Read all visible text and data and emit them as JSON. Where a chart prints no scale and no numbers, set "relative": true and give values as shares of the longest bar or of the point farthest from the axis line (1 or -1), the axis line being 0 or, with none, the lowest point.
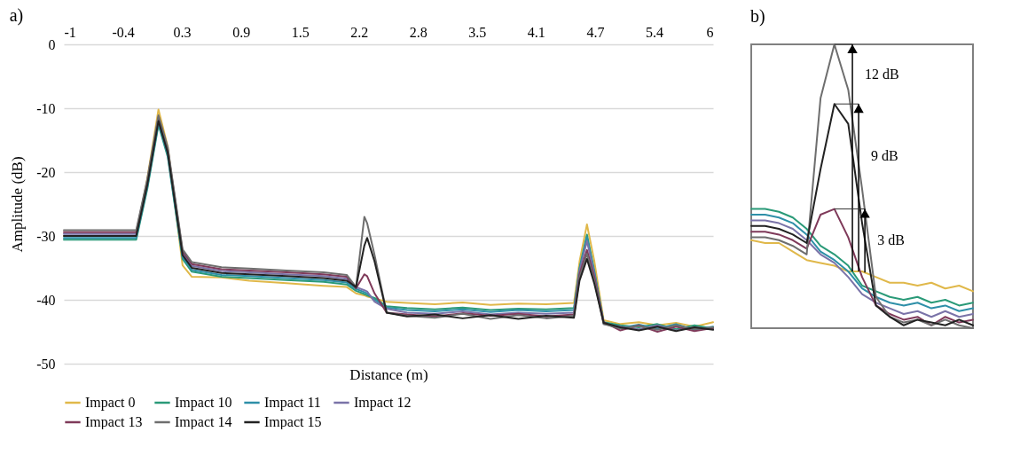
{
  "chart_data": [
    {
      "type": "line",
      "title": "a)",
      "xlabel": "Distance (m)",
      "ylabel": "Amplitude (dB)",
      "xlim": [
        -1,
        6
      ],
      "ylim": [
        -50,
        0
      ],
      "xticks": [
        -1,
        {
          "value": -0.3636,
          "label": "-0.4"
        },
        {
          "value": 0.2727,
          "label": "0.3"
        },
        {
          "value": 0.9091,
          "label": "0.9"
        },
        {
          "value": 1.5455,
          "label": "1.5"
        },
        {
          "value": 2.1818,
          "label": "2.2"
        },
        {
          "value": 2.8182,
          "label": "2.8"
        },
        {
          "value": 3.4545,
          "label": "3.5"
        },
        {
          "value": 4.0909,
          "label": "4.1"
        },
        {
          "value": 4.7273,
          "label": "4.7"
        },
        {
          "value": 5.3636,
          "label": "5.4"
        },
        6
      ],
      "yticks": [
        0,
        -10,
        -20,
        -30,
        -40,
        -50
      ],
      "grid": "y",
      "legend": "bottom",
      "line_style": "solid",
      "x": [
        -1,
        -0.22,
        -0.1,
        0.02,
        0.12,
        0.28,
        0.38,
        0.7,
        1.0,
        1.4,
        1.8,
        2.05,
        2.15,
        2.24,
        2.27,
        2.35,
        2.48,
        2.7,
        3.0,
        3.3,
        3.6,
        3.9,
        4.2,
        4.5,
        4.56,
        4.64,
        4.72,
        4.82,
        5.0,
        5.2,
        5.4,
        5.6,
        5.8,
        6.0
      ],
      "series": [
        {
          "name": "Impact 0",
          "color": "#e0b84a",
          "values": [
            -30,
            -30,
            -21,
            -10.2,
            -16,
            -34.6,
            -36.4,
            -36.5,
            -37,
            -37.4,
            -37.8,
            -38,
            -39,
            -39.3,
            -39.5,
            -39.8,
            -40.3,
            -40.5,
            -40.7,
            -40.4,
            -40.8,
            -40.6,
            -40.7,
            -40.5,
            -34,
            -28.2,
            -34,
            -43.2,
            -43.8,
            -43.5,
            -44,
            -43.6,
            -44.2,
            -43.5
          ]
        },
        {
          "name": "Impact 10",
          "color": "#2a9a78",
          "values": [
            -30.6,
            -30.6,
            -22.6,
            -12.6,
            -17.6,
            -33.6,
            -35.6,
            -36.4,
            -36.6,
            -36.9,
            -37.2,
            -37.6,
            -38.6,
            -39.1,
            -39.3,
            -39.7,
            -41,
            -41.3,
            -41.5,
            -41.2,
            -41.6,
            -41.4,
            -41.5,
            -41.3,
            -35,
            -29.8,
            -35.5,
            -43.5,
            -44,
            -44.3,
            -43.8,
            -44.6,
            -44,
            -44.5
          ]
        },
        {
          "name": "Impact 11",
          "color": "#2e8fa8",
          "values": [
            -30.3,
            -30.3,
            -22.3,
            -12.3,
            -17.3,
            -33.3,
            -35.3,
            -36.1,
            -36.3,
            -36.6,
            -36.9,
            -37.3,
            -38.3,
            -38.8,
            -39,
            -40,
            -41.2,
            -41.6,
            -41.8,
            -41.5,
            -41.9,
            -41.6,
            -41.8,
            -41.6,
            -35.2,
            -30.2,
            -35.8,
            -43.6,
            -44.4,
            -43.9,
            -44.5,
            -43.8,
            -44.7,
            -44.2
          ]
        },
        {
          "name": "Impact 12",
          "color": "#7a73a8",
          "values": [
            -29.7,
            -29.7,
            -21.7,
            -11.7,
            -16.7,
            -32.7,
            -34.7,
            -35.5,
            -35.7,
            -36,
            -36.3,
            -36.7,
            -38,
            -38.5,
            -38.7,
            -40.3,
            -41.4,
            -42,
            -42.2,
            -41.8,
            -42.3,
            -42,
            -42.2,
            -42,
            -35.5,
            -30.8,
            -36,
            -43.8,
            -44.2,
            -44.6,
            -44,
            -44.8,
            -44.3,
            -44.6
          ]
        },
        {
          "name": "Impact 13",
          "color": "#7f3a5a",
          "values": [
            -29.4,
            -29.4,
            -21.4,
            -11.4,
            -16.4,
            -32.4,
            -34.4,
            -35.2,
            -35.4,
            -35.7,
            -36,
            -36.4,
            -38.2,
            -36,
            -36.3,
            -39,
            -42,
            -42.3,
            -42.6,
            -42.1,
            -42.5,
            -42.2,
            -42.6,
            -42.3,
            -36,
            -32.2,
            -36.5,
            -43.5,
            -44.8,
            -44,
            -45,
            -44.2,
            -44.9,
            -44.4
          ]
        },
        {
          "name": "Impact 14",
          "color": "#6e6e6e",
          "values": [
            -29.1,
            -29.1,
            -21.1,
            -11.1,
            -16.1,
            -32.1,
            -34.1,
            -34.9,
            -35.1,
            -35.4,
            -35.7,
            -36.1,
            -38,
            -27,
            -28,
            -33,
            -42,
            -42.5,
            -42.8,
            -42.2,
            -43,
            -42.4,
            -42.9,
            -42.5,
            -36.5,
            -32.8,
            -37,
            -43.8,
            -44.5,
            -44.1,
            -44.7,
            -44,
            -44.6,
            -44.3
          ]
        },
        {
          "name": "Impact 15",
          "color": "#222222",
          "values": [
            -30,
            -30,
            -22,
            -12,
            -17,
            -33,
            -35,
            -35.8,
            -36,
            -36.3,
            -36.6,
            -37,
            -38,
            -31.5,
            -30.3,
            -34,
            -42,
            -42.6,
            -42.3,
            -42.9,
            -42.4,
            -43,
            -42.5,
            -42.8,
            -37,
            -33.6,
            -37.5,
            -43.6,
            -44.3,
            -44.8,
            -44.2,
            -44.9,
            -44.3,
            -44.7
          ]
        }
      ]
    },
    {
      "type": "line",
      "title": "b)",
      "relative": true,
      "line_style": "solid",
      "categories": [
        null,
        null,
        null,
        null,
        null,
        null,
        null,
        null,
        null,
        null,
        null,
        null,
        null,
        null,
        null,
        null,
        null
      ],
      "series": [
        {
          "color": "#e0b84a",
          "values": [
            0.31,
            0.3,
            0.3,
            0.27,
            0.24,
            0.23,
            0.22,
            0.2,
            0.2,
            0.18,
            0.16,
            0.16,
            0.15,
            0.16,
            0.14,
            0.15,
            0.13
          ]
        },
        {
          "color": "#2a9a78",
          "values": [
            0.42,
            0.42,
            0.41,
            0.39,
            0.35,
            0.29,
            0.26,
            0.22,
            0.15,
            0.13,
            0.11,
            0.1,
            0.11,
            0.09,
            0.1,
            0.08,
            0.09
          ]
        },
        {
          "color": "#2e8fa8",
          "values": [
            0.4,
            0.4,
            0.39,
            0.37,
            0.33,
            0.27,
            0.24,
            0.2,
            0.14,
            0.11,
            0.09,
            0.08,
            0.09,
            0.07,
            0.08,
            0.06,
            0.07
          ]
        },
        {
          "color": "#7a73a8",
          "values": [
            0.38,
            0.38,
            0.37,
            0.35,
            0.31,
            0.26,
            0.23,
            0.18,
            0.12,
            0.09,
            0.07,
            0.05,
            0.06,
            0.04,
            0.06,
            0.04,
            0.05
          ]
        },
        {
          "color": "#7f3a5a",
          "values": [
            0.34,
            0.34,
            0.33,
            0.31,
            0.28,
            0.4,
            0.42,
            0.32,
            0.18,
            0.08,
            0.05,
            0.03,
            0.04,
            0.01,
            0.04,
            0.02,
            0.03
          ]
        },
        {
          "color": "#6e6e6e",
          "values": [
            0.32,
            0.32,
            0.31,
            0.29,
            0.26,
            0.81,
            1,
            0.84,
            0.49,
            0.11,
            0.04,
            0.02,
            0.03,
            0.01,
            0.03,
            0.01,
            0
          ]
        },
        {
          "color": "#222222",
          "values": [
            0.36,
            0.36,
            0.35,
            0.33,
            0.3,
            0.56,
            0.79,
            0.72,
            0.37,
            0.08,
            0.04,
            0.01,
            0.03,
            0.02,
            0.01,
            0.03,
            0.01
          ]
        }
      ],
      "annotations": [
        "12 dB",
        "9 dB",
        "3 dB"
      ]
    }
  ]
}
